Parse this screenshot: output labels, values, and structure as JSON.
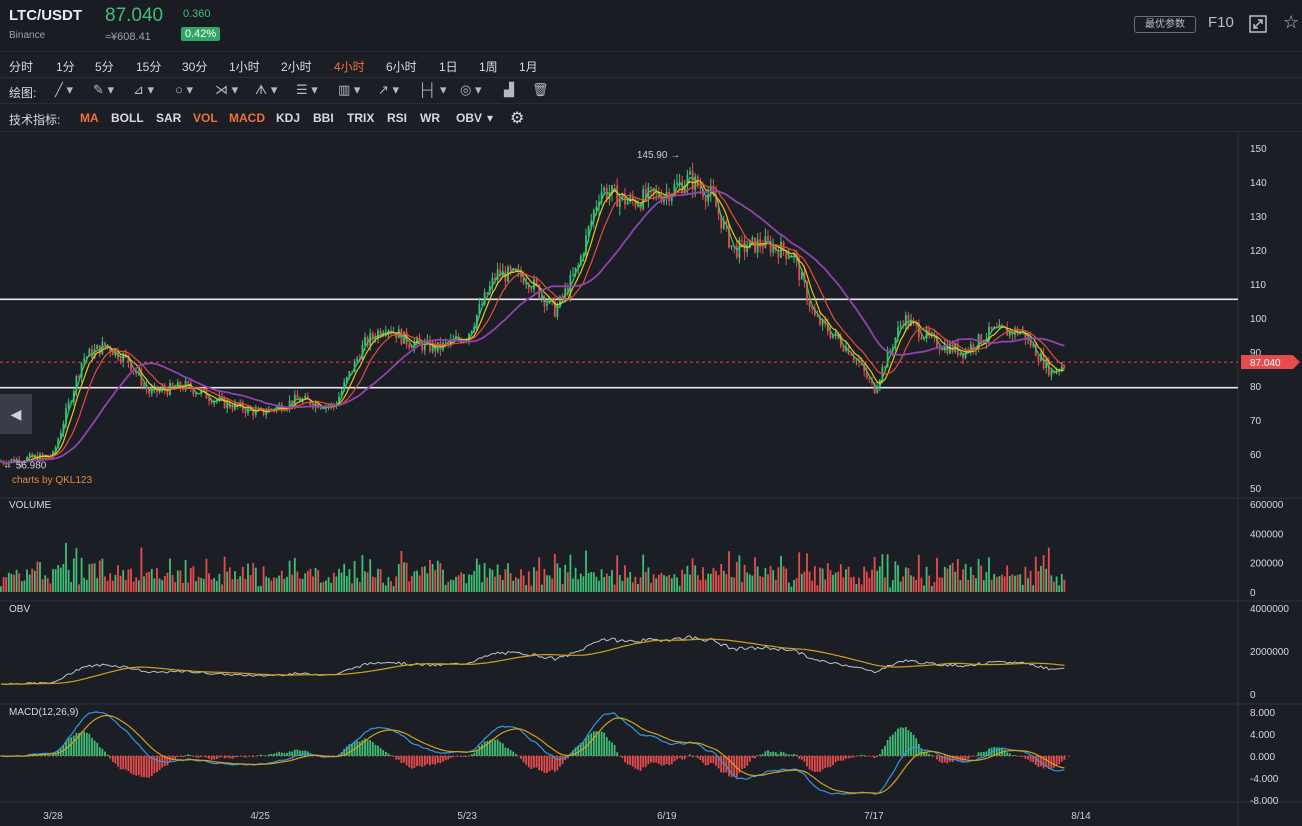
{
  "header": {
    "symbol": "LTC/USDT",
    "exchange": "Binance",
    "price": "87.040",
    "cny": "≈¥608.41",
    "change": "0.360",
    "change_pct": "0.42%",
    "optimal_params": "最优参数",
    "f10": "F10",
    "fullscreen_icon": "fullscreen-icon",
    "star_icon": "star-icon",
    "colors": {
      "up": "#3fbf76",
      "down": "#e74c4c",
      "accent": "#f0703a"
    }
  },
  "intervals": [
    "分时",
    "1分",
    "5分",
    "15分",
    "30分",
    "1小时",
    "2小时",
    "4小时",
    "6小时",
    "1日",
    "1周",
    "1月"
  ],
  "active_interval": "4小时",
  "draw_label": "绘图:",
  "draw_tools": [
    "line-tool-icon",
    "pen-tool-icon",
    "channel-tool-icon",
    "shape-tool-icon",
    "pattern-tool-icon",
    "fork-tool-icon",
    "fib-tool-icon",
    "gann-tool-icon",
    "arrow-tool-icon",
    "measure-tool-icon",
    "annotation-tool-icon",
    "chart-tool-icon",
    "trash-icon"
  ],
  "indicator_label": "技术指标:",
  "indicators": [
    {
      "label": "MA",
      "active": true
    },
    {
      "label": "BOLL",
      "active": false
    },
    {
      "label": "SAR",
      "active": false
    },
    {
      "label": "VOL",
      "active": true
    },
    {
      "label": "MACD",
      "active": true
    },
    {
      "label": "KDJ",
      "active": false
    },
    {
      "label": "BBI",
      "active": false
    },
    {
      "label": "TRIX",
      "active": false
    },
    {
      "label": "RSI",
      "active": false
    },
    {
      "label": "WR",
      "active": false
    },
    {
      "label": "OBV",
      "active": false
    }
  ],
  "watermark": "charts by QKL123",
  "panels": {
    "volume": "VOLUME",
    "obv": "OBV",
    "macd": "MACD(12,26,9)"
  },
  "chart_data": {
    "type": "candlestick",
    "x_ticks": [
      "3/28",
      "4/25",
      "5/23",
      "6/19",
      "7/17",
      "8/14"
    ],
    "price_axis": {
      "ticks": [
        150,
        140,
        130,
        120,
        110,
        100,
        90,
        80,
        70,
        60,
        50
      ],
      "range": [
        50,
        152
      ]
    },
    "volume_axis": {
      "ticks": [
        600000,
        400000,
        200000,
        0
      ]
    },
    "obv_axis": {
      "ticks": [
        4000000,
        2000000,
        0
      ]
    },
    "macd_axis": {
      "ticks": [
        "8.000",
        "4.000",
        "0.000",
        "-4.000",
        "-8.000"
      ]
    },
    "high_marker": {
      "value": "145.90",
      "label": "145.90 →"
    },
    "low_marker": {
      "value": "56.980",
      "label": "← 56.980"
    },
    "current_price": "87.040",
    "horizontal_lines": [
      105.5,
      79.5
    ],
    "price_path": [
      {
        "t": "3/20",
        "close": 57.5
      },
      {
        "t": "3/28",
        "close": 59.5
      },
      {
        "t": "4/01",
        "close": 88
      },
      {
        "t": "4/04",
        "close": 92
      },
      {
        "t": "4/07",
        "close": 88
      },
      {
        "t": "4/10",
        "close": 78
      },
      {
        "t": "4/15",
        "close": 80
      },
      {
        "t": "4/20",
        "close": 75
      },
      {
        "t": "4/25",
        "close": 72
      },
      {
        "t": "4/30",
        "close": 76
      },
      {
        "t": "5/05",
        "close": 74
      },
      {
        "t": "5/09",
        "close": 92
      },
      {
        "t": "5/12",
        "close": 98
      },
      {
        "t": "5/15",
        "close": 93
      },
      {
        "t": "5/19",
        "close": 91
      },
      {
        "t": "5/23",
        "close": 95
      },
      {
        "t": "5/27",
        "close": 113
      },
      {
        "t": "5/31",
        "close": 112
      },
      {
        "t": "6/04",
        "close": 102
      },
      {
        "t": "6/07",
        "close": 115
      },
      {
        "t": "6/10",
        "close": 138
      },
      {
        "t": "6/14",
        "close": 134
      },
      {
        "t": "6/19",
        "close": 137
      },
      {
        "t": "6/22",
        "close": 141
      },
      {
        "t": "6/25",
        "close": 136
      },
      {
        "t": "6/28",
        "close": 120
      },
      {
        "t": "7/02",
        "close": 122
      },
      {
        "t": "7/06",
        "close": 119
      },
      {
        "t": "7/09",
        "close": 100
      },
      {
        "t": "7/14",
        "close": 90
      },
      {
        "t": "7/17",
        "close": 79
      },
      {
        "t": "7/21",
        "close": 100
      },
      {
        "t": "7/25",
        "close": 93
      },
      {
        "t": "7/29",
        "close": 90
      },
      {
        "t": "8/02",
        "close": 96
      },
      {
        "t": "8/06",
        "close": 96
      },
      {
        "t": "8/10",
        "close": 84
      },
      {
        "t": "8/12",
        "close": 87
      }
    ]
  }
}
